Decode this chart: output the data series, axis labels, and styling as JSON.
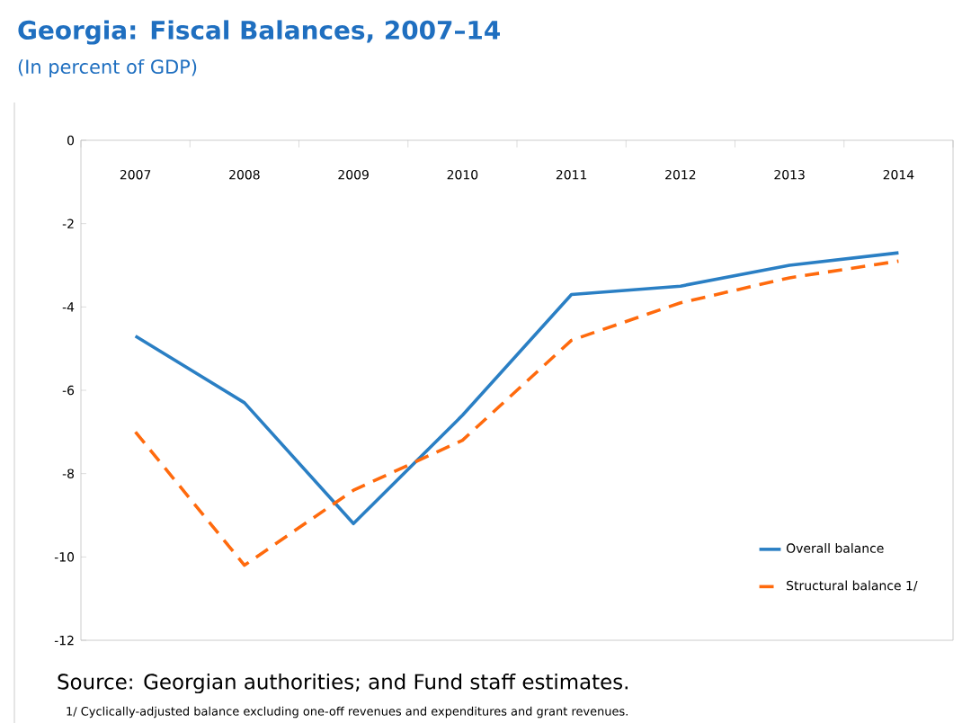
{
  "chart_data": {
    "type": "line",
    "title": "Georgia: Fiscal Balances, 2007–14",
    "subtitle": "(In percent of GDP)",
    "categories": [
      "2007",
      "2008",
      "2009",
      "2010",
      "2011",
      "2012",
      "2013",
      "2014"
    ],
    "series": [
      {
        "name": "Overall balance",
        "color": "#2a7fc4",
        "line_style": "solid",
        "values": [
          -4.7,
          -6.3,
          -9.2,
          -6.6,
          -3.7,
          -3.5,
          -3.0,
          -2.7
        ]
      },
      {
        "name": "Structural balance 1/",
        "color": "#ff6a0d",
        "line_style": "dashed",
        "values": [
          -7.0,
          -10.2,
          -8.4,
          -7.2,
          -4.8,
          -3.9,
          -3.3,
          -2.9
        ]
      }
    ],
    "ylim": [
      -12,
      0
    ],
    "yticks": [
      -12,
      -10,
      -8,
      -6,
      -4,
      -2,
      0
    ],
    "grid": false,
    "legend": "bottom right",
    "marker": "none",
    "annotations": [
      "Source: Georgian authorities; and Fund staff estimates.",
      "1/ Cyclically-adjusted balance excluding one-off revenues and expenditures and grant revenues."
    ]
  }
}
